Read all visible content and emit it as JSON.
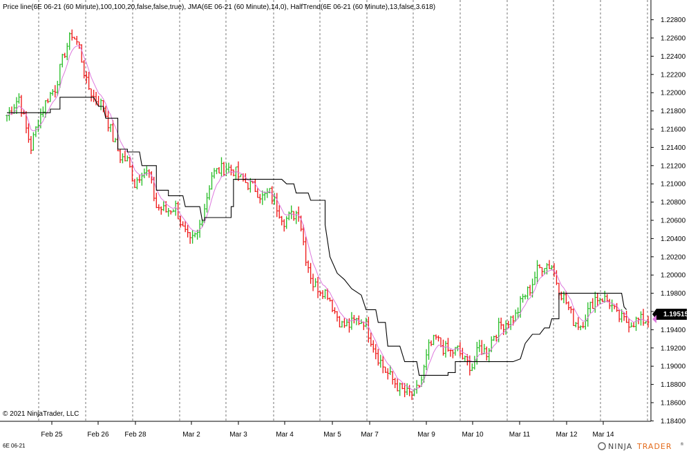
{
  "header": {
    "indicator_line": "Price line(6E 06-21 (60 Minute),100,100,20,false,false,true), JMA(6E 06-21 (60 Minute),14,0), HalfTrend(6E 06-21 (60 Minute),13,false,3.618)"
  },
  "footer": {
    "copyright": "© 2021 NinjaTrader, LLC",
    "instrument": "6E 06-21",
    "brand_left": "NINJA",
    "brand_right": "TRADER",
    "brand_suffix": "®"
  },
  "price_box": {
    "label": "1.19515"
  },
  "colors": {
    "up_bar": "#22bb22",
    "down_bar": "#ee1111",
    "jma_line": "#dd77dd",
    "halftrend_line": "#000000",
    "grid": "#555555",
    "price_box_bg": "#000000",
    "price_box_text": "#ffffff",
    "brand_accent": "#e36a1a"
  },
  "chart_data": {
    "type": "candlestick-ohlc",
    "instrument": "6E 06-21",
    "timeframe": "60 Minute",
    "ylim": [
      1.184,
      1.229
    ],
    "y_ticks": [
      "1.22800",
      "1.22600",
      "1.22400",
      "1.22200",
      "1.22000",
      "1.21800",
      "1.21600",
      "1.21400",
      "1.21200",
      "1.21000",
      "1.20800",
      "1.20600",
      "1.20400",
      "1.20200",
      "1.20000",
      "1.19800",
      "1.19600",
      "1.19400",
      "1.19200",
      "1.19000",
      "1.18800",
      "1.18600",
      "1.18400"
    ],
    "x_labels": [
      "Feb 25",
      "Feb 26",
      "Feb 28",
      "Mar 2",
      "Mar 3",
      "Mar 4",
      "Mar 5",
      "Mar 7",
      "Mar 9",
      "Mar 10",
      "Mar 11",
      "Mar 12",
      "Mar 14"
    ],
    "last_price": 1.19515,
    "price_path": [
      [
        0,
        1.2175
      ],
      [
        5,
        1.2195
      ],
      [
        8,
        1.216
      ],
      [
        10,
        1.214
      ],
      [
        13,
        1.217
      ],
      [
        17,
        1.2195
      ],
      [
        20,
        1.2205
      ],
      [
        24,
        1.2245
      ],
      [
        27,
        1.2265
      ],
      [
        30,
        1.225
      ],
      [
        33,
        1.221
      ],
      [
        36,
        1.2195
      ],
      [
        40,
        1.2185
      ],
      [
        44,
        1.215
      ],
      [
        47,
        1.213
      ],
      [
        50,
        1.2125
      ],
      [
        53,
        1.21
      ],
      [
        56,
        1.2115
      ],
      [
        59,
        1.211
      ],
      [
        62,
        1.2075
      ],
      [
        66,
        1.207
      ],
      [
        70,
        1.2075
      ],
      [
        73,
        1.205
      ],
      [
        76,
        1.2035
      ],
      [
        79,
        1.2045
      ],
      [
        82,
        1.2075
      ],
      [
        85,
        1.211
      ],
      [
        88,
        1.2115
      ],
      [
        91,
        1.2118
      ],
      [
        94,
        1.2115
      ],
      [
        97,
        1.2105
      ],
      [
        100,
        1.21
      ],
      [
        103,
        1.2095
      ],
      [
        106,
        1.2085
      ],
      [
        109,
        1.209
      ],
      [
        112,
        1.2075
      ],
      [
        115,
        1.206
      ],
      [
        118,
        1.2065
      ],
      [
        121,
        1.207
      ],
      [
        124,
        1.202
      ],
      [
        127,
        1.199
      ],
      [
        130,
        1.1985
      ],
      [
        133,
        1.198
      ],
      [
        136,
        1.196
      ],
      [
        139,
        1.1945
      ],
      [
        142,
        1.1945
      ],
      [
        145,
        1.195
      ],
      [
        148,
        1.195
      ],
      [
        151,
        1.193
      ],
      [
        154,
        1.191
      ],
      [
        157,
        1.1895
      ],
      [
        160,
        1.1885
      ],
      [
        163,
        1.1875
      ],
      [
        166,
        1.187
      ],
      [
        169,
        1.1868
      ],
      [
        172,
        1.1885
      ],
      [
        175,
        1.192
      ],
      [
        178,
        1.193
      ],
      [
        181,
        1.192
      ],
      [
        184,
        1.1915
      ],
      [
        187,
        1.1918
      ],
      [
        190,
        1.1905
      ],
      [
        193,
        1.19
      ],
      [
        196,
        1.192
      ],
      [
        199,
        1.1915
      ],
      [
        202,
        1.1935
      ],
      [
        205,
        1.1945
      ],
      [
        208,
        1.195
      ],
      [
        211,
        1.1955
      ],
      [
        214,
        1.1975
      ],
      [
        217,
        1.1985
      ],
      [
        220,
        1.2005
      ],
      [
        223,
        1.2012
      ],
      [
        226,
        1.201
      ],
      [
        229,
        1.1985
      ],
      [
        232,
        1.197
      ],
      [
        235,
        1.195
      ],
      [
        238,
        1.1945
      ],
      [
        241,
        1.196
      ],
      [
        244,
        1.1975
      ],
      [
        247,
        1.1975
      ],
      [
        250,
        1.197
      ],
      [
        253,
        1.1955
      ],
      [
        256,
        1.195
      ],
      [
        259,
        1.1948
      ],
      [
        262,
        1.195
      ],
      [
        266,
        1.1951
      ]
    ],
    "halftrend_steps": [
      [
        0,
        1.2178
      ],
      [
        18,
        1.2178
      ],
      [
        18,
        1.2182
      ],
      [
        22,
        1.2182
      ],
      [
        22,
        1.2195
      ],
      [
        36,
        1.2195
      ],
      [
        38,
        1.2185
      ],
      [
        40,
        1.2185
      ],
      [
        41,
        1.2172
      ],
      [
        46,
        1.2172
      ],
      [
        46,
        1.2138
      ],
      [
        50,
        1.2138
      ],
      [
        50,
        1.2135
      ],
      [
        55,
        1.2135
      ],
      [
        56,
        1.212
      ],
      [
        62,
        1.212
      ],
      [
        62,
        1.2093
      ],
      [
        67,
        1.2093
      ],
      [
        67,
        1.2087
      ],
      [
        73,
        1.2087
      ],
      [
        74,
        1.2075
      ],
      [
        80,
        1.2075
      ],
      [
        81,
        1.206
      ],
      [
        82,
        1.206
      ],
      [
        82,
        1.2063
      ],
      [
        93,
        1.2063
      ],
      [
        93,
        1.2075
      ],
      [
        94,
        1.2075
      ],
      [
        94,
        1.2105
      ],
      [
        114,
        1.2105
      ],
      [
        116,
        1.21
      ],
      [
        119,
        1.21
      ],
      [
        120,
        1.209
      ],
      [
        125,
        1.209
      ],
      [
        126,
        1.2082
      ],
      [
        132,
        1.2082
      ],
      [
        132,
        1.2055
      ],
      [
        134,
        1.202
      ],
      [
        137,
        1.2002
      ],
      [
        140,
        1.1995
      ],
      [
        143,
        1.1985
      ],
      [
        147,
        1.1978
      ],
      [
        149,
        1.1962
      ],
      [
        153,
        1.1962
      ],
      [
        154,
        1.1948
      ],
      [
        157,
        1.1948
      ],
      [
        158,
        1.1922
      ],
      [
        163,
        1.1922
      ],
      [
        165,
        1.1905
      ],
      [
        170,
        1.1905
      ],
      [
        171,
        1.189
      ],
      [
        183,
        1.189
      ],
      [
        183,
        1.1893
      ],
      [
        186,
        1.1893
      ],
      [
        186,
        1.1905
      ],
      [
        210,
        1.1905
      ],
      [
        213,
        1.1908
      ],
      [
        215,
        1.1925
      ],
      [
        218,
        1.1935
      ],
      [
        221,
        1.1935
      ],
      [
        223,
        1.1942
      ],
      [
        225,
        1.1942
      ],
      [
        226,
        1.1952
      ],
      [
        229,
        1.1952
      ],
      [
        229,
        1.198
      ],
      [
        255,
        1.198
      ],
      [
        256,
        1.1965
      ],
      [
        257,
        1.1962
      ]
    ]
  }
}
